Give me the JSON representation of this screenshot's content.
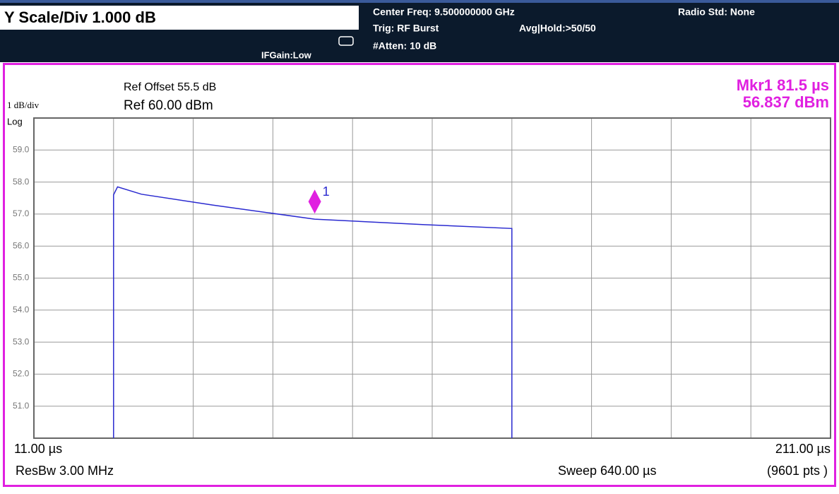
{
  "header": {
    "scale": "Y Scale/Div 1.000 dB",
    "if_gain": "IFGain:Low",
    "center_freq": "Center Freq: 9.500000000 GHz",
    "trig": "Trig: RF Burst",
    "atten": "#Atten: 10 dB",
    "avg_hold": "Avg|Hold:>50/50",
    "radio_std": "Radio Std: None"
  },
  "chart_data": {
    "type": "line",
    "ref_offset": "Ref Offset 55.5 dB",
    "scale_label": "1 dB/div",
    "ref_level": "Ref 60.00 dBm",
    "x": [
      31,
      31,
      32,
      38,
      56,
      81.5,
      109,
      131,
      131
    ],
    "values": [
      50,
      57.6,
      57.85,
      57.62,
      57.28,
      56.84,
      56.67,
      56.55,
      50
    ],
    "color": "#2a2ad0",
    "marker": {
      "x": 81.5,
      "value": 56.837,
      "label": "1",
      "x_label": "Mkr1 81.5 µs",
      "value_label": "56.837 dBm",
      "color": "#e020e0"
    },
    "xlim": [
      11,
      211
    ],
    "xticks": [
      {
        "value": 11,
        "label": "11.00 µs"
      },
      {
        "value": 211,
        "label": "211.00 µs"
      }
    ],
    "xgrid": [
      31,
      51,
      71,
      91,
      111,
      131,
      151,
      171,
      191
    ],
    "ylim": [
      50,
      60
    ],
    "yticks": [
      {
        "value": 60,
        "label": "Log"
      },
      {
        "value": 59,
        "label": "59.0"
      },
      {
        "value": 58,
        "label": "58.0"
      },
      {
        "value": 57,
        "label": "57.0"
      },
      {
        "value": 56,
        "label": "56.0"
      },
      {
        "value": 55,
        "label": "55.0"
      },
      {
        "value": 54,
        "label": "54.0"
      },
      {
        "value": 53,
        "label": "53.0"
      },
      {
        "value": 52,
        "label": "52.0"
      },
      {
        "value": 51,
        "label": "51.0"
      }
    ],
    "grid": true,
    "footer": {
      "res_bw": "ResBw 3.00 MHz",
      "sweep": "Sweep 640.00 µs",
      "points": "(9601 pts )"
    }
  }
}
